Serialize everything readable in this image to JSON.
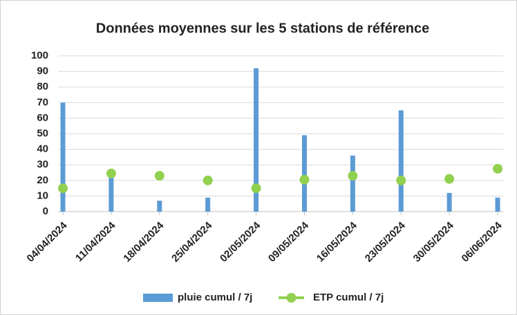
{
  "chart_data": {
    "type": "bar",
    "title": "Données moyennes sur les 5 stations de référence",
    "categories": [
      "04/04/2024",
      "11/04/2024",
      "18/04/2024",
      "25/04/2024",
      "02/05/2024",
      "09/05/2024",
      "16/05/2024",
      "23/05/2024",
      "30/05/2024",
      "06/06/2024"
    ],
    "series": [
      {
        "name": "pluie cumul / 7j",
        "type": "bar",
        "color": "#5b9bd5",
        "values": [
          70,
          22,
          7,
          9,
          92,
          49,
          36,
          65,
          12,
          9
        ]
      },
      {
        "name": "ETP cumul / 7j",
        "type": "scatter",
        "color": "#92d050",
        "values": [
          15,
          24.5,
          23,
          20,
          15,
          20.5,
          23,
          20,
          21,
          27.5
        ]
      }
    ],
    "ylim": [
      0,
      100
    ],
    "yticks": [
      0,
      10,
      20,
      30,
      40,
      50,
      60,
      70,
      80,
      90,
      100
    ],
    "grid": true,
    "legend": "bottom"
  }
}
